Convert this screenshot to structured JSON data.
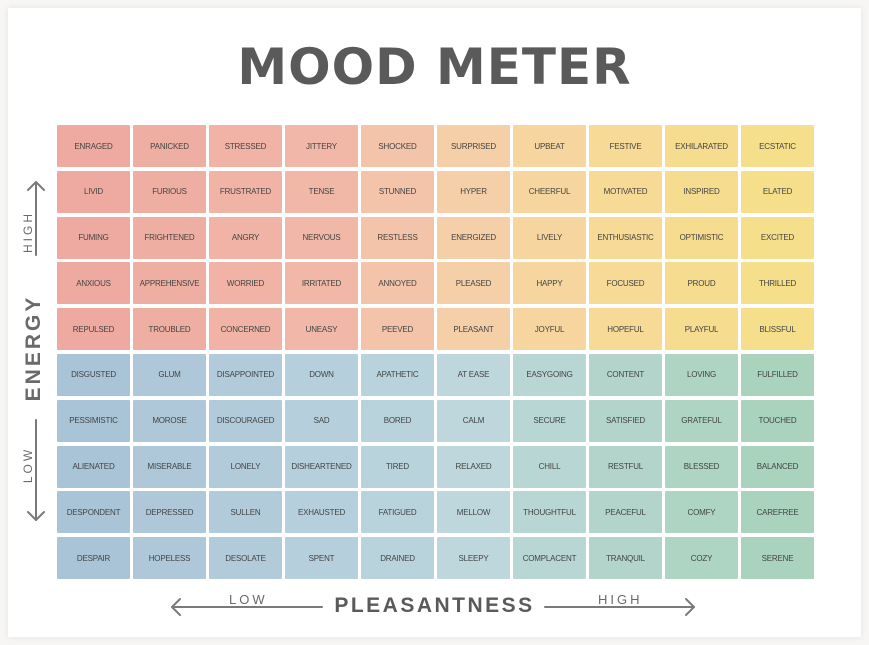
{
  "title": "MOOD METER",
  "axes": {
    "y_label": "ENERGY",
    "y_high": "HIGH",
    "y_low": "LOW",
    "x_label": "PLEASANTNESS",
    "x_low": "LOW",
    "x_high": "HIGH"
  },
  "grid": {
    "rows": [
      [
        "ENRAGED",
        "PANICKED",
        "STRESSED",
        "JITTERY",
        "SHOCKED",
        "SURPRISED",
        "UPBEAT",
        "FESTIVE",
        "EXHILARATED",
        "ECSTATIC"
      ],
      [
        "LIVID",
        "FURIOUS",
        "FRUSTRATED",
        "TENSE",
        "STUNNED",
        "HYPER",
        "CHEERFUL",
        "MOTIVATED",
        "INSPIRED",
        "ELATED"
      ],
      [
        "FUMING",
        "FRIGHTENED",
        "ANGRY",
        "NERVOUS",
        "RESTLESS",
        "ENERGIZED",
        "LIVELY",
        "ENTHUSIASTIC",
        "OPTIMISTIC",
        "EXCITED"
      ],
      [
        "ANXIOUS",
        "APPREHENSIVE",
        "WORRIED",
        "IRRITATED",
        "ANNOYED",
        "PLEASED",
        "HAPPY",
        "FOCUSED",
        "PROUD",
        "THRILLED"
      ],
      [
        "REPULSED",
        "TROUBLED",
        "CONCERNED",
        "UNEASY",
        "PEEVED",
        "PLEASANT",
        "JOYFUL",
        "HOPEFUL",
        "PLAYFUL",
        "BLISSFUL"
      ],
      [
        "DISGUSTED",
        "GLUM",
        "DISAPPOINTED",
        "DOWN",
        "APATHETIC",
        "AT EASE",
        "EASYGOING",
        "CONTENT",
        "LOVING",
        "FULFILLED"
      ],
      [
        "PESSIMISTIC",
        "MOROSE",
        "DISCOURAGED",
        "SAD",
        "BORED",
        "CALM",
        "SECURE",
        "SATISFIED",
        "GRATEFUL",
        "TOUCHED"
      ],
      [
        "ALIENATED",
        "MISERABLE",
        "LONELY",
        "DISHEARTENED",
        "TIRED",
        "RELAXED",
        "CHILL",
        "RESTFUL",
        "BLESSED",
        "BALANCED"
      ],
      [
        "DESPONDENT",
        "DEPRESSED",
        "SULLEN",
        "EXHAUSTED",
        "FATIGUED",
        "MELLOW",
        "THOUGHTFUL",
        "PEACEFUL",
        "COMFY",
        "CAREFREE"
      ],
      [
        "DESPAIR",
        "HOPELESS",
        "DESOLATE",
        "SPENT",
        "DRAINED",
        "SLEEPY",
        "COMPLACENT",
        "TRANQUIL",
        "COZY",
        "SERENE"
      ]
    ],
    "colors": [
      [
        "#eeaaa0",
        "#efaea2",
        "#f0b3a5",
        "#f1b8a8",
        "#f3c4aa",
        "#f5cfa7",
        "#f6d69e",
        "#f6da96",
        "#f6dc8f",
        "#f6df8b"
      ],
      [
        "#eeaaa0",
        "#efaea2",
        "#f0b3a5",
        "#f1b8a8",
        "#f3c4aa",
        "#f5cfa7",
        "#f6d69e",
        "#f6da96",
        "#f6dc8f",
        "#f6df8b"
      ],
      [
        "#eeaaa0",
        "#efaea2",
        "#f0b3a5",
        "#f1b8a8",
        "#f3c4aa",
        "#f5cfa7",
        "#f6d69e",
        "#f6da96",
        "#f6dc8f",
        "#f6df8b"
      ],
      [
        "#eeaaa0",
        "#efaea2",
        "#f0b3a5",
        "#f1b8a8",
        "#f3c4aa",
        "#f5cfa7",
        "#f6d69e",
        "#f6da96",
        "#f6dc8f",
        "#f6df8b"
      ],
      [
        "#eeaaa0",
        "#efaea2",
        "#f0b3a5",
        "#f1b8a8",
        "#f3c4aa",
        "#f5cfa7",
        "#f6d69e",
        "#f6da96",
        "#f6dc8f",
        "#f6df8b"
      ],
      [
        "#a9c4d6",
        "#aec8d9",
        "#b2cbdb",
        "#b6cfdc",
        "#b9d3dd",
        "#bdd7dd",
        "#b8d6d3",
        "#b3d4cb",
        "#aed4c3",
        "#a9d3bd"
      ],
      [
        "#a9c4d6",
        "#aec8d9",
        "#b2cbdb",
        "#b6cfdc",
        "#b9d3dd",
        "#bdd7dd",
        "#b8d6d3",
        "#b3d4cb",
        "#aed4c3",
        "#a9d3bd"
      ],
      [
        "#a9c4d6",
        "#aec8d9",
        "#b2cbdb",
        "#b6cfdc",
        "#b9d3dd",
        "#bdd7dd",
        "#b8d6d3",
        "#b3d4cb",
        "#aed4c3",
        "#a9d3bd"
      ],
      [
        "#a9c4d6",
        "#aec8d9",
        "#b2cbdb",
        "#b6cfdc",
        "#b9d3dd",
        "#bdd7dd",
        "#b8d6d3",
        "#b3d4cb",
        "#aed4c3",
        "#a9d3bd"
      ],
      [
        "#a9c4d6",
        "#aec8d9",
        "#b2cbdb",
        "#b6cfdc",
        "#b9d3dd",
        "#bdd7dd",
        "#b8d6d3",
        "#b3d4cb",
        "#aed4c3",
        "#a9d3bd"
      ]
    ]
  }
}
